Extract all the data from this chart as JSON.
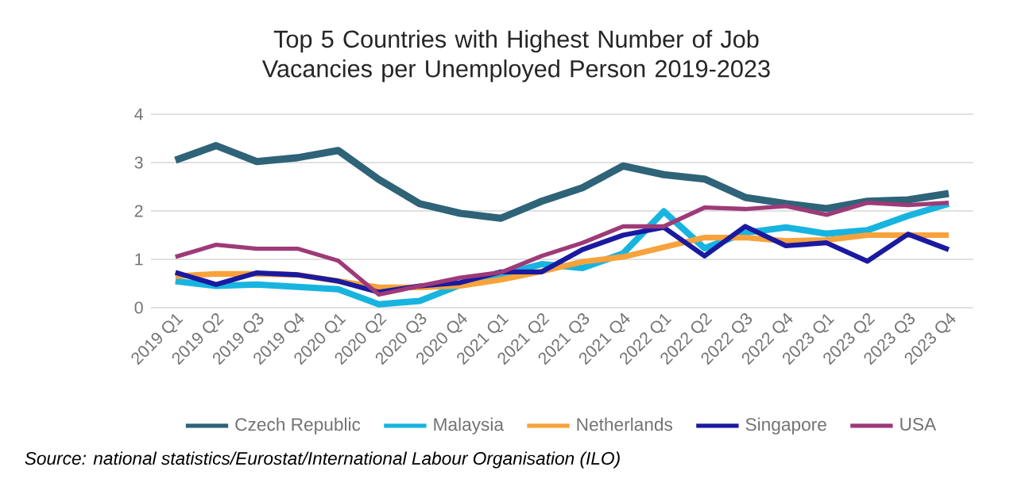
{
  "chart_data": {
    "type": "line",
    "title": "Top 5 Countries with Highest Number of Job Vacancies per Unemployed Person 2019-2023",
    "categories": [
      "2019 Q1",
      "2019 Q2",
      "2019 Q3",
      "2019 Q4",
      "2020 Q1",
      "2020 Q2",
      "2020 Q3",
      "2020 Q4",
      "2021 Q1",
      "2021 Q2",
      "2021 Q3",
      "2021 Q4",
      "2022 Q1",
      "2022 Q2",
      "2022 Q3",
      "2022 Q4",
      "2023 Q1",
      "2023 Q2",
      "2023 Q3",
      "2023 Q4"
    ],
    "series": [
      {
        "name": "Czech Republic",
        "color": "#2e6378",
        "values": [
          3.05,
          3.35,
          3.02,
          3.1,
          3.25,
          2.65,
          2.15,
          1.95,
          1.85,
          2.2,
          2.48,
          2.93,
          2.75,
          2.66,
          2.28,
          2.15,
          2.05,
          2.2,
          2.23,
          2.36
        ]
      },
      {
        "name": "Malaysia",
        "color": "#18b4e0",
        "values": [
          0.55,
          0.45,
          0.48,
          0.43,
          0.38,
          0.07,
          0.14,
          0.47,
          0.68,
          0.9,
          0.82,
          1.12,
          1.99,
          1.23,
          1.55,
          1.66,
          1.53,
          1.6,
          1.9,
          2.15
        ]
      },
      {
        "name": "Netherlands",
        "color": "#f7a23b",
        "values": [
          0.65,
          0.7,
          0.7,
          0.68,
          0.55,
          0.42,
          0.42,
          0.45,
          0.58,
          0.75,
          0.95,
          1.05,
          1.25,
          1.45,
          1.45,
          1.38,
          1.4,
          1.5,
          1.5,
          1.5
        ]
      },
      {
        "name": "Singapore",
        "color": "#1a1aa0",
        "values": [
          0.73,
          0.48,
          0.72,
          0.68,
          0.55,
          0.32,
          0.45,
          0.52,
          0.74,
          0.74,
          1.2,
          1.5,
          1.66,
          1.07,
          1.68,
          1.28,
          1.34,
          0.96,
          1.52,
          1.2
        ]
      },
      {
        "name": "USA",
        "color": "#9e3a78",
        "values": [
          1.05,
          1.3,
          1.22,
          1.22,
          0.97,
          0.27,
          0.45,
          0.62,
          0.73,
          1.07,
          1.34,
          1.68,
          1.68,
          2.07,
          2.04,
          2.1,
          1.92,
          2.17,
          2.12,
          2.17
        ]
      }
    ],
    "ylim": [
      0,
      4
    ],
    "yticks": [
      0,
      1,
      2,
      3,
      4
    ],
    "grid": "y",
    "legend": "bottom",
    "marker": "none",
    "line_style": "solid",
    "annotations": [
      "Source: national statistics/Eurostat/International Labour Organisation (ILO)"
    ]
  }
}
